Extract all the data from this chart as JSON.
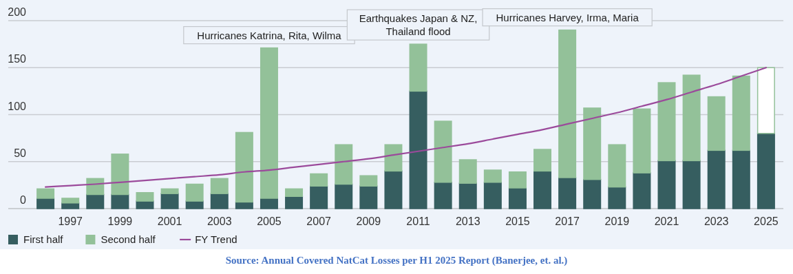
{
  "chart_data": {
    "type": "bar",
    "stacked": true,
    "categories": [
      null,
      "1997",
      null,
      "1999",
      null,
      "2001",
      null,
      "2003",
      null,
      "2005",
      null,
      "2007",
      null,
      "2009",
      null,
      "2011",
      null,
      "2013",
      null,
      "2015",
      null,
      "2017",
      null,
      "2019",
      null,
      "2021",
      null,
      "2023",
      null,
      "2025"
    ],
    "series": [
      {
        "name": "First half",
        "color": "#365e60",
        "values": [
          11,
          6,
          15,
          15,
          8,
          16,
          8,
          16,
          7,
          11,
          13,
          24,
          26,
          24,
          40,
          125,
          28,
          27,
          28,
          22,
          40,
          33,
          31,
          23,
          38,
          51,
          51,
          62,
          62,
          80
        ]
      },
      {
        "name": "Second half",
        "color": "#93c199",
        "colors": [
          "#93c199",
          "#93c199",
          "#93c199",
          "#93c199",
          "#93c199",
          "#93c199",
          "#93c199",
          "#93c199",
          "#93c199",
          "#93c199",
          "#93c199",
          "#93c199",
          "#93c199",
          "#93c199",
          "#93c199",
          "#93c199",
          "#93c199",
          "#93c199",
          "#93c199",
          "#93c199",
          "#93c199",
          "#93c199",
          "#93c199",
          "#93c199",
          "#93c199",
          "#93c199",
          "#93c199",
          "#93c199",
          "#93c199",
          "#ffffff"
        ],
        "values": [
          10,
          5,
          17,
          43,
          9,
          5,
          18,
          16,
          74,
          160,
          8,
          13,
          42,
          11,
          28,
          50,
          65,
          25,
          13,
          17,
          23,
          157,
          76,
          45,
          68,
          83,
          91,
          57,
          79,
          70
        ]
      },
      {
        "name": "FY Trend",
        "type": "line",
        "color": "#9b4a9b",
        "values": [
          23,
          24.5,
          26,
          28,
          30,
          32,
          34,
          36,
          39,
          41,
          44,
          47,
          50,
          53,
          57,
          61,
          65,
          69,
          74,
          79,
          84,
          90,
          96,
          102,
          109,
          116,
          124,
          132,
          141,
          150
        ]
      }
    ],
    "ylim": [
      0,
      200
    ],
    "yticks": [
      0,
      50,
      100,
      150,
      200
    ],
    "grid": "y",
    "legend": "bottom left",
    "annotations": [
      {
        "text": "Hurricanes Katrina, Rita, Wilma",
        "x": "2005",
        "y": 171
      },
      {
        "text": "Earthquakes Japan & NZ, Thailand flood",
        "x": "2011",
        "y": 175
      },
      {
        "text": "Hurricanes Harvey, Irma, Maria",
        "x": "2017",
        "y": 190
      },
      "Source: Annual Covered NatCat Losses per H1 2025 Report (Banerjee, et. al.)"
    ]
  }
}
